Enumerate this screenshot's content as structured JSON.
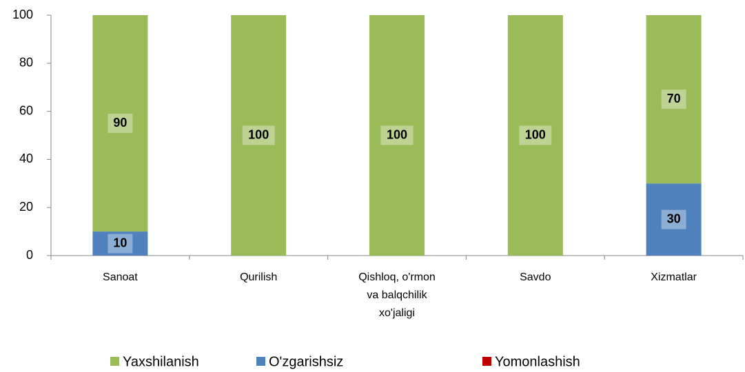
{
  "chart_data": {
    "type": "stacked_bar",
    "categories": [
      "Sanoat",
      "Qurilish",
      "Qishloq, o'rmon va balqchilik xo'jaligi",
      "Savdo",
      "Xizmatlar"
    ],
    "series": [
      {
        "name": "O'zgarishsiz",
        "color": "#4f81bd",
        "values": [
          10,
          0,
          0,
          0,
          30
        ]
      },
      {
        "name": "Yaxshilanish",
        "color": "#9bbb59",
        "values": [
          90,
          100,
          100,
          100,
          70
        ]
      },
      {
        "name": "Yomonlashish",
        "color": "#c00000",
        "values": [
          0,
          0,
          0,
          0,
          0
        ]
      }
    ],
    "legend_order": [
      "Yaxshilanish",
      "O'zgarishsiz",
      "Yomonlashish"
    ],
    "ylim": [
      0,
      100
    ],
    "yticks": [
      0,
      20,
      40,
      60,
      80,
      100
    ],
    "grid": false,
    "legend": "bottom"
  }
}
